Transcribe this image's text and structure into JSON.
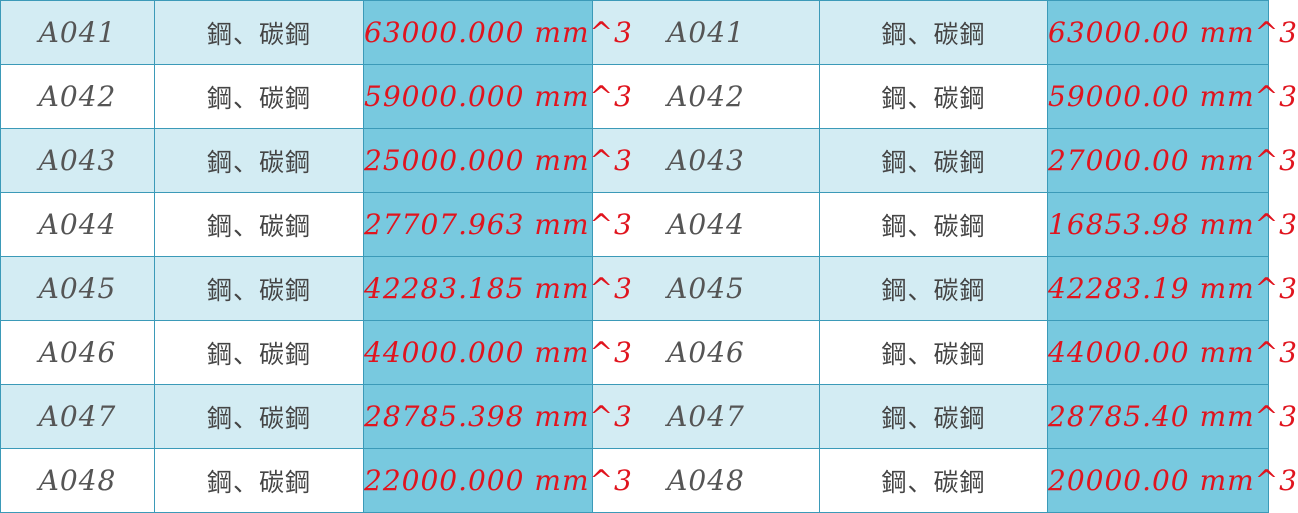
{
  "colors": {
    "border": "#3b9ab8",
    "row_alt_bg": "#d3ecf3",
    "row_plain_bg": "#ffffff",
    "volume_col_bg": "#78c9df",
    "volume_text": "#e0141e",
    "code_text": "#555555"
  },
  "rows": [
    {
      "left": {
        "code": "A041",
        "material": "鋼、碳鋼",
        "volume": "63000.000",
        "unit": "mm^3"
      },
      "right": {
        "code": "A041",
        "material": "鋼、碳鋼",
        "volume": "63000.00",
        "unit": "mm^3"
      }
    },
    {
      "left": {
        "code": "A042",
        "material": "鋼、碳鋼",
        "volume": "59000.000",
        "unit": "mm^3"
      },
      "right": {
        "code": "A042",
        "material": "鋼、碳鋼",
        "volume": "59000.00",
        "unit": "mm^3"
      }
    },
    {
      "left": {
        "code": "A043",
        "material": "鋼、碳鋼",
        "volume": "25000.000",
        "unit": "mm^3"
      },
      "right": {
        "code": "A043",
        "material": "鋼、碳鋼",
        "volume": "27000.00",
        "unit": "mm^3"
      }
    },
    {
      "left": {
        "code": "A044",
        "material": "鋼、碳鋼",
        "volume": "27707.963",
        "unit": "mm^3"
      },
      "right": {
        "code": "A044",
        "material": "鋼、碳鋼",
        "volume": "16853.98",
        "unit": "mm^3"
      }
    },
    {
      "left": {
        "code": "A045",
        "material": "鋼、碳鋼",
        "volume": "42283.185",
        "unit": "mm^3"
      },
      "right": {
        "code": "A045",
        "material": "鋼、碳鋼",
        "volume": "42283.19",
        "unit": "mm^3"
      }
    },
    {
      "left": {
        "code": "A046",
        "material": "鋼、碳鋼",
        "volume": "44000.000",
        "unit": "mm^3"
      },
      "right": {
        "code": "A046",
        "material": "鋼、碳鋼",
        "volume": "44000.00",
        "unit": "mm^3"
      }
    },
    {
      "left": {
        "code": "A047",
        "material": "鋼、碳鋼",
        "volume": "28785.398",
        "unit": "mm^3"
      },
      "right": {
        "code": "A047",
        "material": "鋼、碳鋼",
        "volume": "28785.40",
        "unit": "mm^3"
      }
    },
    {
      "left": {
        "code": "A048",
        "material": "鋼、碳鋼",
        "volume": "22000.000",
        "unit": "mm^3"
      },
      "right": {
        "code": "A048",
        "material": "鋼、碳鋼",
        "volume": "20000.00",
        "unit": "mm^3"
      }
    }
  ]
}
